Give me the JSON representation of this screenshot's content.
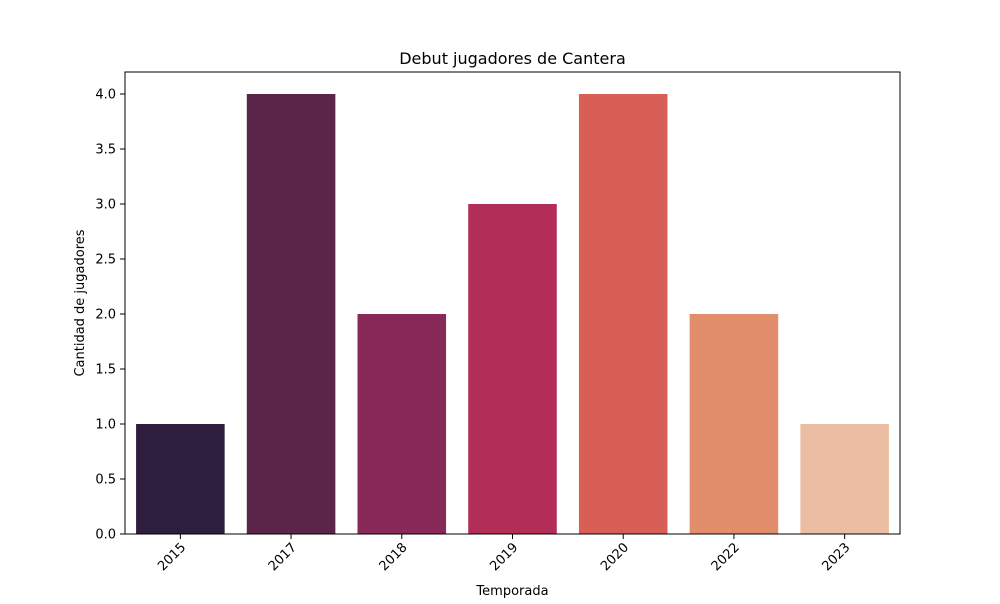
{
  "chart_data": {
    "type": "bar",
    "title": "Debut jugadores de Cantera",
    "xlabel": "Temporada",
    "ylabel": "Cantidad de jugadores",
    "categories": [
      "2015",
      "2017",
      "2018",
      "2019",
      "2020",
      "2022",
      "2023"
    ],
    "values": [
      1,
      4,
      2,
      3,
      4,
      2,
      1
    ],
    "colors": [
      "#2d1e3e",
      "#5b2549",
      "#872a58",
      "#b32e56",
      "#d85f56",
      "#e28e6d",
      "#ebbea4"
    ],
    "ylim": [
      0,
      4.2
    ],
    "yticks": [
      0.0,
      0.5,
      1.0,
      1.5,
      2.0,
      2.5,
      3.0,
      3.5,
      4.0
    ],
    "ytick_labels": [
      "0.0",
      "0.5",
      "1.0",
      "1.5",
      "2.0",
      "2.5",
      "3.0",
      "3.5",
      "4.0"
    ],
    "xtick_rotation": 45,
    "grid": false,
    "legend": "none"
  }
}
